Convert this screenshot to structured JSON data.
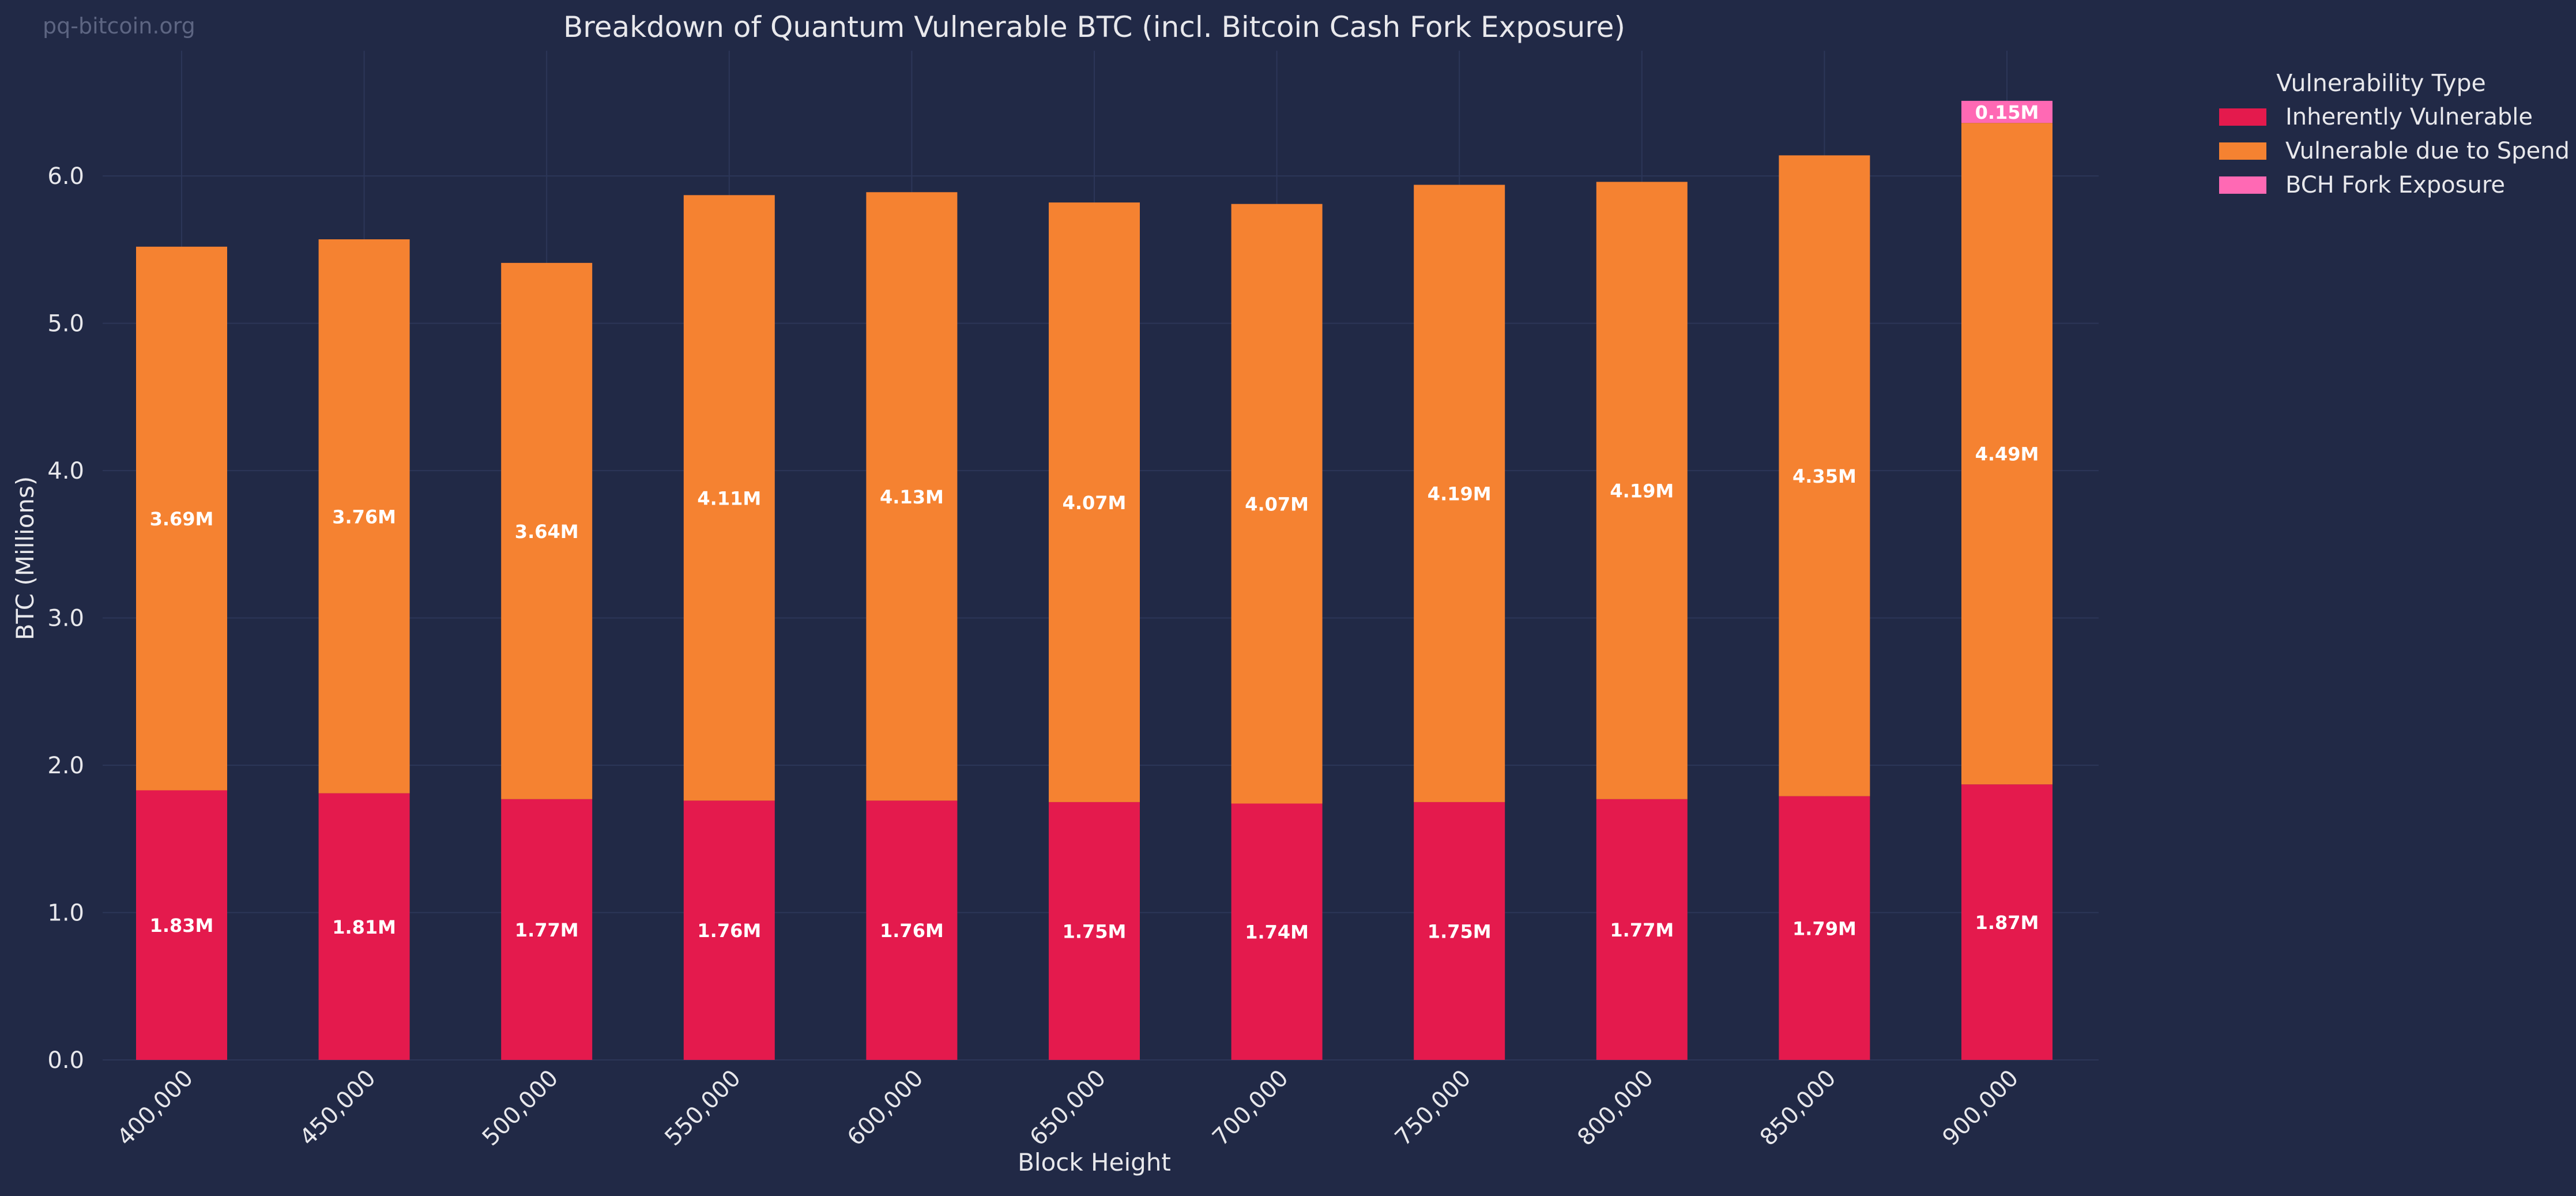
{
  "watermark": "pq-bitcoin.org",
  "colors": {
    "background": "#212946",
    "grid": "#2c3658",
    "text": "#e8e8ec",
    "watermark": "#5d6582",
    "inherent": "#e41a4d",
    "spend": "#f58231",
    "bch": "#ff69b4"
  },
  "chart_data": {
    "type": "bar",
    "stacked": true,
    "title": "Breakdown of Quantum Vulnerable BTC (incl. Bitcoin Cash Fork Exposure)",
    "xlabel": "Block Height",
    "ylabel": "BTC (Millions)",
    "ylim": [
      0,
      6.85
    ],
    "yticks": [
      "0.0",
      "1.0",
      "2.0",
      "3.0",
      "4.0",
      "5.0",
      "6.0"
    ],
    "categories": [
      "400,000",
      "450,000",
      "500,000",
      "550,000",
      "600,000",
      "650,000",
      "700,000",
      "750,000",
      "800,000",
      "850,000",
      "900,000"
    ],
    "grid": true,
    "legend_title": "Vulnerability Type",
    "legend_position": "top-right, outside plot",
    "series": [
      {
        "name": "Inherently Vulnerable",
        "color": "#e41a4d",
        "values": [
          1.83,
          1.81,
          1.77,
          1.76,
          1.76,
          1.75,
          1.74,
          1.75,
          1.77,
          1.79,
          1.87
        ],
        "labels": [
          "1.83M",
          "1.81M",
          "1.77M",
          "1.76M",
          "1.76M",
          "1.75M",
          "1.74M",
          "1.75M",
          "1.77M",
          "1.79M",
          "1.87M"
        ]
      },
      {
        "name": "Vulnerable due to Spend",
        "color": "#f58231",
        "values": [
          3.69,
          3.76,
          3.64,
          4.11,
          4.13,
          4.07,
          4.07,
          4.19,
          4.19,
          4.35,
          4.49
        ],
        "labels": [
          "3.69M",
          "3.76M",
          "3.64M",
          "4.11M",
          "4.13M",
          "4.07M",
          "4.07M",
          "4.19M",
          "4.19M",
          "4.35M",
          "4.49M"
        ]
      },
      {
        "name": "BCH Fork Exposure",
        "color": "#ff69b4",
        "values": [
          0,
          0,
          0,
          0,
          0,
          0,
          0,
          0,
          0,
          0,
          0.15
        ],
        "labels": [
          "",
          "",
          "",
          "",
          "",
          "",
          "",
          "",
          "",
          "",
          "0.15M"
        ]
      }
    ]
  }
}
